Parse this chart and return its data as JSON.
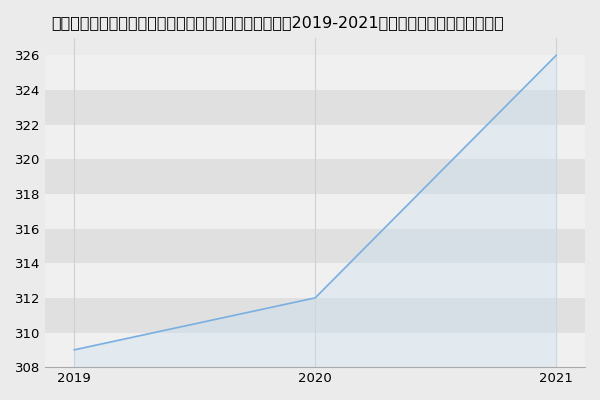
{
  "title": "郑州大学土木工程学院供热、供燃气、通风及空调工程（2019-2021历年复试）研究生录取分数线",
  "x": [
    2019,
    2020,
    2021
  ],
  "y": [
    309,
    312,
    326
  ],
  "line_color": "#7aafe0",
  "fill_color": "#c8dff2",
  "background_color": "#ebebeb",
  "stripe_color": "#e0e0e0",
  "white_stripe": "#f0f0f0",
  "xlim": [
    2018.88,
    2021.12
  ],
  "ylim": [
    308,
    327
  ],
  "yticks": [
    308,
    310,
    312,
    314,
    316,
    318,
    320,
    322,
    324,
    326
  ],
  "xticks": [
    2019,
    2020,
    2021
  ],
  "title_fontsize": 11.5,
  "tick_fontsize": 9.5,
  "fill_alpha": 0.35,
  "vgrid_color": "#d0d0d0"
}
